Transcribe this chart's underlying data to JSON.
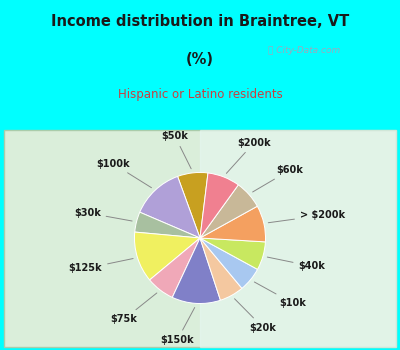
{
  "title_line1": "Income distribution in Braintree, VT",
  "title_line2": "(%)",
  "subtitle": "Hispanic or Latino residents",
  "watermark": "ⓘ City-Data.com",
  "labels": [
    "$50k",
    "$100k",
    "$30k",
    "$125k",
    "$75k",
    "$150k",
    "$20k",
    "$10k",
    "$40k",
    "> $200k",
    "$60k",
    "$200k"
  ],
  "sizes": [
    7.5,
    13.0,
    5.0,
    12.5,
    7.0,
    12.0,
    6.0,
    6.0,
    7.0,
    9.0,
    7.0,
    8.0
  ],
  "colors": [
    "#C8A020",
    "#B0A0D8",
    "#A8C0A0",
    "#F0F060",
    "#F0A8B8",
    "#8080C8",
    "#F4C8A0",
    "#A8C8F0",
    "#C8E860",
    "#F4A060",
    "#C8B898",
    "#F08090"
  ],
  "startangle": 83,
  "bg_top_color": "#00FFFF",
  "bg_chart_color_tl": "#D8EED8",
  "bg_chart_color_br": "#E8F8F8",
  "title_fontsize": 10.5,
  "subtitle_fontsize": 8.5,
  "label_fontsize": 7.0,
  "title_color": "#1a1a1a",
  "subtitle_color": "#C84040",
  "watermark_color": "#9aaabb",
  "label_color": "#1a1a1a"
}
